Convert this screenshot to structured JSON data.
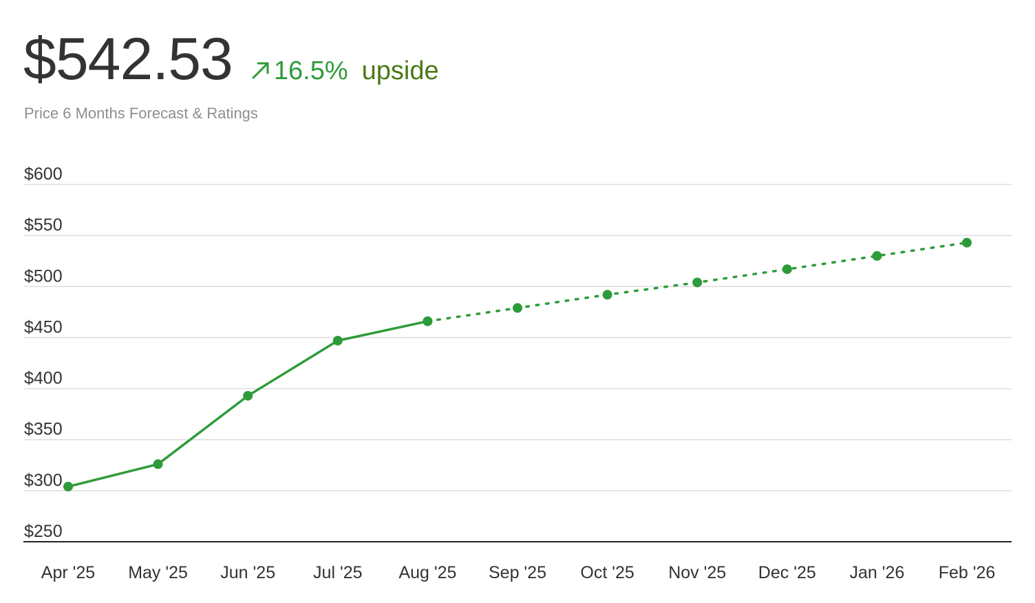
{
  "header": {
    "price": "$542.53",
    "change": "16.5%",
    "upside_label": "upside",
    "subtitle": "Price 6 Months Forecast & Ratings",
    "arrow_icon": "arrow-up-right-icon"
  },
  "colors": {
    "line": "#2e9b3a",
    "grid": "#dddddd",
    "axis": "#222222",
    "upside_text": "#4a7a16"
  },
  "chart_data": {
    "type": "line",
    "title": "",
    "xlabel": "",
    "ylabel": "",
    "ylim": [
      250,
      600
    ],
    "y_ticks": [
      600,
      550,
      500,
      450,
      400,
      350,
      300,
      250
    ],
    "y_tick_labels": [
      "$600",
      "$550",
      "$500",
      "$450",
      "$400",
      "$350",
      "$300",
      "$250"
    ],
    "categories": [
      "Apr '25",
      "May '25",
      "Jun '25",
      "Jul '25",
      "Aug '25",
      "Sep '25",
      "Oct '25",
      "Nov '25",
      "Dec '25",
      "Jan '26",
      "Feb '26"
    ],
    "series": [
      {
        "style": "solid",
        "values": [
          304,
          326,
          393,
          447,
          466,
          null,
          null,
          null,
          null,
          null,
          null
        ]
      },
      {
        "style": "dotted",
        "values": [
          null,
          null,
          null,
          null,
          466,
          479,
          492,
          504,
          517,
          530,
          543
        ]
      }
    ],
    "grid": true,
    "legend": "none"
  }
}
